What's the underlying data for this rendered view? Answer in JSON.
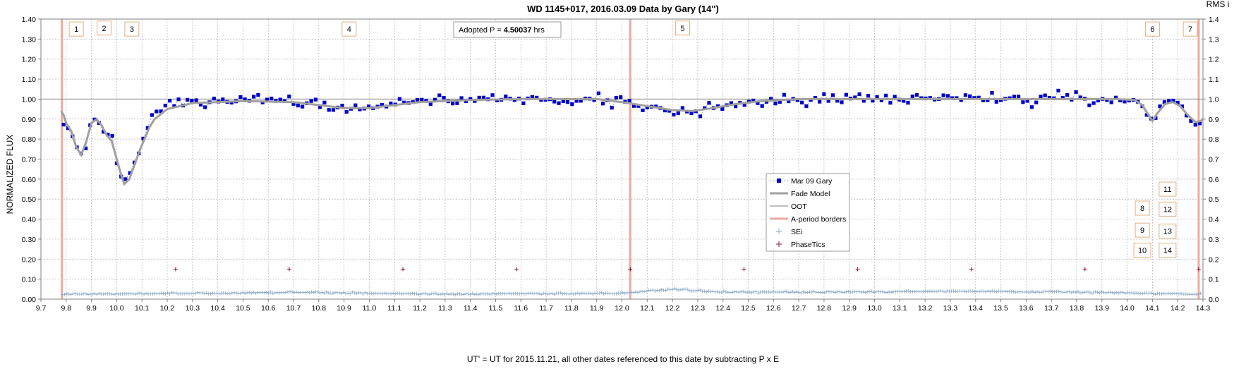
{
  "chart_data": {
    "type": "scatter",
    "title": "WD 1145+017, 2016.03.09 Data by Gary (14\")",
    "xlabel": "UT' = UT for 2015.11.21, all other dates referenced to this date by subtracting P x E",
    "ylabel": "NORMALIZED FLUX",
    "right_axis_title": "RMS i",
    "xlim": [
      9.7,
      14.3
    ],
    "ylim": [
      0.0,
      1.4
    ],
    "y2lim": [
      0.0,
      1.4
    ],
    "x_ticks": [
      "9.7",
      "9.8",
      "9.9",
      "10.0",
      "10.1",
      "10.2",
      "10.3",
      "10.4",
      "10.5",
      "10.6",
      "10.7",
      "10.8",
      "10.9",
      "11.0",
      "11.1",
      "11.2",
      "11.3",
      "11.4",
      "11.5",
      "11.6",
      "11.7",
      "11.8",
      "11.9",
      "12.0",
      "12.1",
      "12.2",
      "12.3",
      "12.4",
      "12.5",
      "12.6",
      "12.7",
      "12.8",
      "12.9",
      "13.0",
      "13.1",
      "13.2",
      "13.3",
      "13.4",
      "13.5",
      "13.6",
      "13.7",
      "13.8",
      "13.9",
      "14.0",
      "14.1",
      "14.2",
      "14.3"
    ],
    "y_ticks": [
      "0.00",
      "0.10",
      "0.20",
      "0.30",
      "0.40",
      "0.50",
      "0.60",
      "0.70",
      "0.80",
      "0.90",
      "1.00",
      "1.10",
      "1.20",
      "1.30",
      "1.40"
    ],
    "y2_ticks": [
      "0.0",
      "0.1",
      "0.2",
      "0.3",
      "0.4",
      "0.5",
      "0.6",
      "0.7",
      "0.8",
      "0.9",
      "1.0",
      "1.1",
      "1.2",
      "1.3",
      "1.4"
    ],
    "grid": true,
    "legend_position": "center-right",
    "annotation": {
      "prefix": "Adopted P = ",
      "value": "4.50037",
      "unit": " hrs"
    },
    "period_borders_x": [
      9.783,
      12.033,
      14.283
    ],
    "phase_tics": {
      "x": [
        10.233,
        10.683,
        11.133,
        11.583,
        12.033,
        12.483,
        12.933,
        13.383,
        13.833,
        14.283
      ],
      "y": 0.15
    },
    "oot_level": 1.0,
    "dip_labels": [
      {
        "label": "1",
        "x": 9.84,
        "y": 1.35
      },
      {
        "label": "2",
        "x": 9.95,
        "y": 1.355
      },
      {
        "label": "3",
        "x": 10.06,
        "y": 1.35
      },
      {
        "label": "4",
        "x": 10.92,
        "y": 1.35
      },
      {
        "label": "5",
        "x": 12.24,
        "y": 1.355
      },
      {
        "label": "6",
        "x": 14.1,
        "y": 1.35
      },
      {
        "label": "7",
        "x": 14.25,
        "y": 1.35
      },
      {
        "label": "8",
        "x": 14.06,
        "y": 0.455
      },
      {
        "label": "9",
        "x": 14.06,
        "y": 0.345
      },
      {
        "label": "10",
        "x": 14.06,
        "y": 0.245
      },
      {
        "label": "11",
        "x": 14.16,
        "y": 0.55
      },
      {
        "label": "12",
        "x": 14.16,
        "y": 0.45
      },
      {
        "label": "13",
        "x": 14.16,
        "y": 0.34
      },
      {
        "label": "14",
        "x": 14.16,
        "y": 0.245
      }
    ],
    "series": [
      {
        "name": "Mar 09 Gary",
        "color": "#0000CC"
      },
      {
        "name": "Fade Model",
        "color": "#A0A0A0"
      },
      {
        "name": "OOT",
        "color": "#7F7F7F"
      },
      {
        "name": "A-period borders",
        "color": "#F2A7A0"
      },
      {
        "name": "SEi",
        "color": "#8CA8C8"
      },
      {
        "name": "PhaseTics",
        "color": "#8B1A3A"
      }
    ],
    "dip_anchors": [
      [
        9.8,
        0.86
      ],
      [
        9.82,
        0.84
      ],
      [
        9.85,
        0.74
      ],
      [
        9.87,
        0.72
      ],
      [
        9.9,
        0.88
      ],
      [
        9.92,
        0.9
      ],
      [
        9.95,
        0.83
      ],
      [
        9.98,
        0.84
      ],
      [
        10.0,
        0.68
      ],
      [
        10.03,
        0.58
      ],
      [
        10.05,
        0.63
      ],
      [
        10.08,
        0.72
      ],
      [
        10.1,
        0.8
      ],
      [
        10.13,
        0.89
      ],
      [
        10.17,
        0.94
      ],
      [
        10.2,
        0.96
      ],
      [
        10.25,
        0.98
      ],
      [
        10.4,
        0.99
      ],
      [
        10.6,
        0.99
      ],
      [
        10.75,
        0.98
      ],
      [
        10.9,
        0.955
      ],
      [
        11.0,
        0.96
      ],
      [
        11.1,
        0.98
      ],
      [
        11.3,
        0.995
      ],
      [
        11.5,
        1.0
      ],
      [
        11.9,
        1.0
      ],
      [
        12.0,
        0.98
      ],
      [
        12.1,
        0.96
      ],
      [
        12.2,
        0.942
      ],
      [
        12.3,
        0.94
      ],
      [
        12.4,
        0.965
      ],
      [
        12.5,
        0.99
      ],
      [
        12.7,
        1.0
      ],
      [
        13.9,
        1.0
      ],
      [
        14.05,
        0.985
      ],
      [
        14.08,
        0.93
      ],
      [
        14.1,
        0.89
      ],
      [
        14.13,
        0.96
      ],
      [
        14.16,
        0.985
      ],
      [
        14.2,
        0.97
      ],
      [
        14.25,
        0.9
      ],
      [
        14.28,
        0.885
      ],
      [
        14.3,
        0.9
      ]
    ],
    "model_fade": [
      [
        9.78,
        0.94
      ],
      [
        9.79,
        0.92
      ],
      [
        9.8,
        0.88
      ],
      [
        9.82,
        0.84
      ],
      [
        9.84,
        0.76
      ],
      [
        9.86,
        0.72
      ],
      [
        9.88,
        0.79
      ],
      [
        9.9,
        0.88
      ],
      [
        9.92,
        0.9
      ],
      [
        9.94,
        0.87
      ],
      [
        9.96,
        0.82
      ],
      [
        9.98,
        0.79
      ],
      [
        10.0,
        0.7
      ],
      [
        10.02,
        0.61
      ],
      [
        10.03,
        0.575
      ],
      [
        10.05,
        0.6
      ],
      [
        10.07,
        0.67
      ],
      [
        10.09,
        0.74
      ],
      [
        10.11,
        0.8
      ],
      [
        10.13,
        0.86
      ],
      [
        10.15,
        0.9
      ],
      [
        10.2,
        0.95
      ],
      [
        10.3,
        0.98
      ],
      [
        10.5,
        0.99
      ],
      [
        10.7,
        0.985
      ],
      [
        10.8,
        0.97
      ],
      [
        10.9,
        0.955
      ],
      [
        11.0,
        0.955
      ],
      [
        11.1,
        0.97
      ],
      [
        11.2,
        0.985
      ],
      [
        11.4,
        0.995
      ],
      [
        11.6,
        1.0
      ],
      [
        11.9,
        1.0
      ],
      [
        12.0,
        0.985
      ],
      [
        12.1,
        0.965
      ],
      [
        12.2,
        0.945
      ],
      [
        12.28,
        0.94
      ],
      [
        12.36,
        0.955
      ],
      [
        12.45,
        0.975
      ],
      [
        12.55,
        0.99
      ],
      [
        12.7,
        1.0
      ],
      [
        13.95,
        1.0
      ],
      [
        14.03,
        0.995
      ],
      [
        14.06,
        0.97
      ],
      [
        14.08,
        0.93
      ],
      [
        14.1,
        0.89
      ],
      [
        14.12,
        0.93
      ],
      [
        14.15,
        0.975
      ],
      [
        14.18,
        0.985
      ],
      [
        14.21,
        0.965
      ],
      [
        14.24,
        0.92
      ],
      [
        14.27,
        0.885
      ],
      [
        14.29,
        0.89
      ],
      [
        14.3,
        0.9
      ]
    ],
    "sei_level": [
      [
        9.78,
        0.025
      ],
      [
        10.4,
        0.03
      ],
      [
        10.7,
        0.035
      ],
      [
        11.0,
        0.03
      ],
      [
        11.3,
        0.025
      ],
      [
        12.0,
        0.03
      ],
      [
        12.2,
        0.05
      ],
      [
        12.4,
        0.035
      ],
      [
        12.9,
        0.035
      ],
      [
        13.3,
        0.04
      ],
      [
        13.8,
        0.035
      ],
      [
        14.3,
        0.025
      ]
    ]
  }
}
